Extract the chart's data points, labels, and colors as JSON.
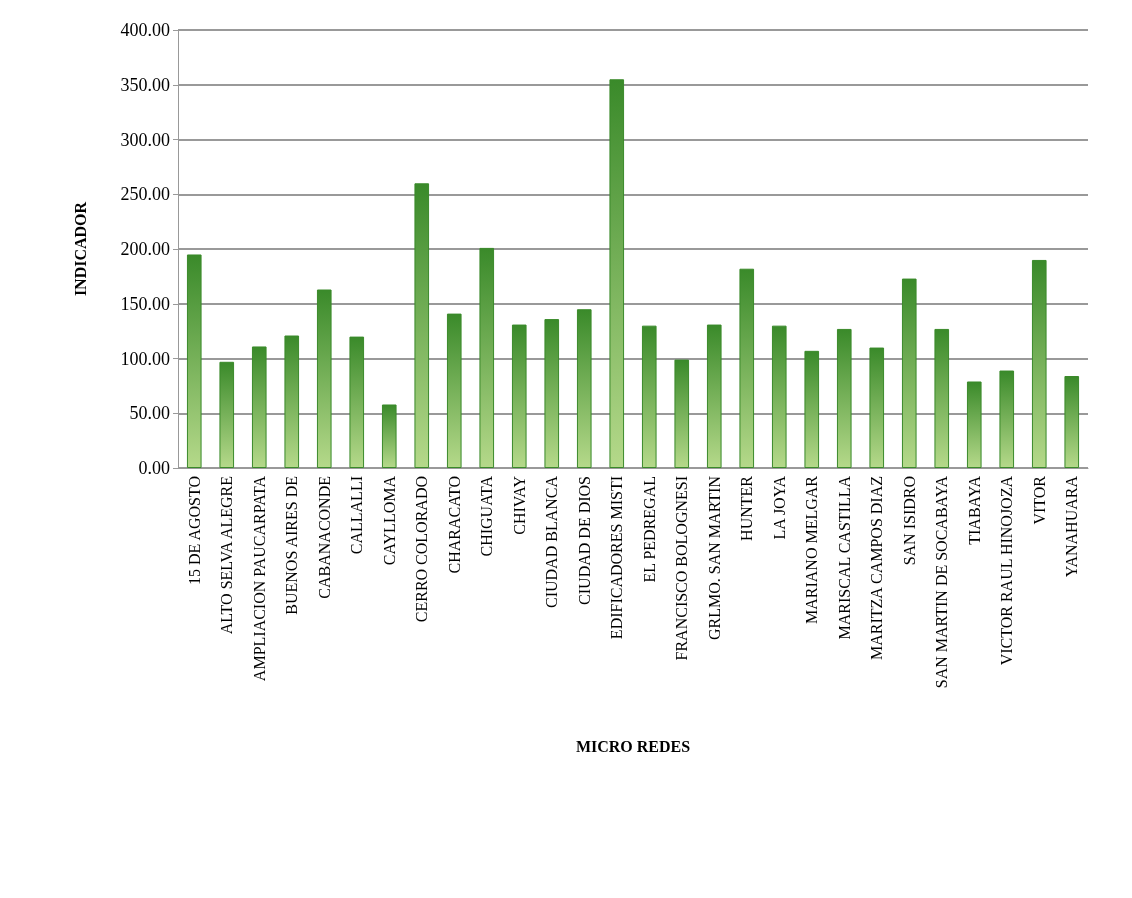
{
  "chart_data": {
    "type": "bar",
    "xlabel": "MICRO REDES",
    "ylabel": "INDICADOR",
    "categories": [
      "15 DE AGOSTO",
      "ALTO SELVA ALEGRE",
      "AMPLIACION PAUCARPATA",
      "BUENOS AIRES DE",
      "CABANACONDE",
      "CALLALLI",
      "CAYLLOMA",
      "CERRO COLORADO",
      "CHARACATO",
      "CHIGUATA",
      "CHIVAY",
      "CIUDAD BLANCA",
      "CIUDAD DE DIOS",
      "EDIFICADORES MISTI",
      "EL PEDREGAL",
      "FRANCISCO BOLOGNESI",
      "GRLMO. SAN MARTIN",
      "HUNTER",
      "LA JOYA",
      "MARIANO MELGAR",
      "MARISCAL CASTILLA",
      "MARITZA CAMPOS DIAZ",
      "SAN ISIDRO",
      "SAN MARTIN DE SOCABAYA",
      "TIABAYA",
      "VICTOR RAUL HINOJOZA",
      "VITOR",
      "YANAHUARA"
    ],
    "values": [
      195,
      97,
      111,
      121,
      163,
      120,
      58,
      260,
      141,
      201,
      131,
      136,
      145,
      355,
      130,
      99,
      131,
      182,
      130,
      107,
      127,
      110,
      173,
      127,
      79,
      89,
      190,
      84
    ],
    "color": "#3a8a2a",
    "ylim": [
      0,
      400
    ],
    "yticks": [
      {
        "value": 0,
        "label": "0.00"
      },
      {
        "value": 50,
        "label": "50.00"
      },
      {
        "value": 100,
        "label": "100.00"
      },
      {
        "value": 150,
        "label": "150.00"
      },
      {
        "value": 200,
        "label": "200.00"
      },
      {
        "value": 250,
        "label": "250.00"
      },
      {
        "value": 300,
        "label": "300.00"
      },
      {
        "value": 350,
        "label": "350.00"
      },
      {
        "value": 400,
        "label": "400.00"
      }
    ],
    "grid": "y"
  }
}
